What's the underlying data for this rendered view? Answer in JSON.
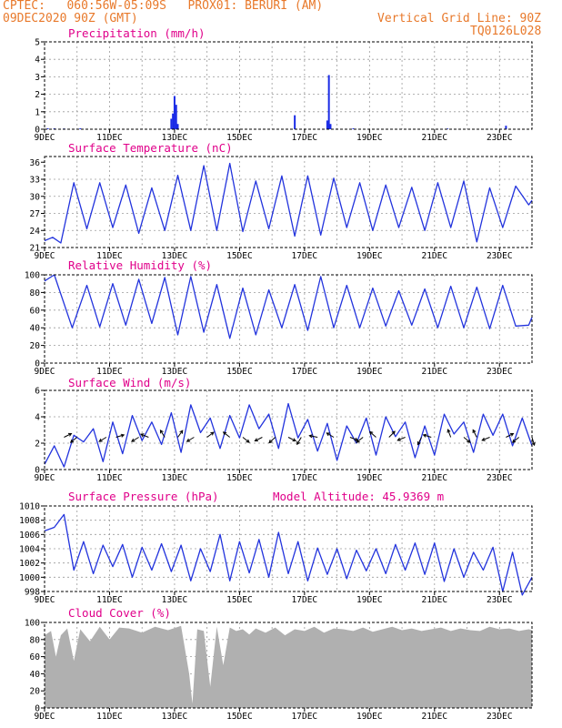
{
  "header": {
    "line1_left": "CPTEC:   060:56W-05:09S   PROX01: BERURI (AM)",
    "line2_left": "09DEC2020 90Z (GMT)",
    "line2_right": "Vertical Grid Line: 90Z",
    "line3_right": "TQ0126L028"
  },
  "colors": {
    "header_text": "#e8792b",
    "panel_title": "#e0008a",
    "series_line": "#2233dd",
    "precip_bar": "#1a2be6",
    "cloud_fill": "#b0b0b0",
    "grid": "#9a9a9a",
    "wind_arrow": "#000000"
  },
  "chart_data": [
    {
      "id": "precip",
      "type": "bar",
      "title": "Precipitation (mm/h)",
      "ylim": [
        0,
        5
      ],
      "yticks": [
        "0",
        "1",
        "2",
        "3",
        "4",
        "5"
      ],
      "xlim": [
        0,
        15
      ],
      "xticks": [
        "9DEC",
        "11DEC",
        "13DEC",
        "15DEC",
        "17DEC",
        "19DEC",
        "21DEC",
        "23DEC"
      ],
      "grid": true,
      "x": [
        0.1,
        0.3,
        0.6,
        1.1,
        3.9,
        3.95,
        4.0,
        4.05,
        4.1,
        7.7,
        8.7,
        8.75,
        8.8,
        9.5,
        12.4,
        14.2
      ],
      "values": [
        0.05,
        0.05,
        0.04,
        0.05,
        0.6,
        0.9,
        1.9,
        1.4,
        0.3,
        0.8,
        0.5,
        3.1,
        0.3,
        0.05,
        0.04,
        0.2
      ]
    },
    {
      "id": "temperature",
      "type": "line",
      "title": "Surface Temperature (nC)",
      "ylim": [
        21,
        37
      ],
      "yticks": [
        "21",
        "24",
        "27",
        "30",
        "33",
        "36"
      ],
      "xlim": [
        0,
        15
      ],
      "xticks": [
        "9DEC",
        "11DEC",
        "13DEC",
        "15DEC",
        "17DEC",
        "19DEC",
        "21DEC",
        "23DEC"
      ],
      "grid": true,
      "x": [
        0,
        0.25,
        0.5,
        0.9,
        1.3,
        1.7,
        2.1,
        2.5,
        2.9,
        3.3,
        3.7,
        4.1,
        4.5,
        4.9,
        5.3,
        5.7,
        6.1,
        6.5,
        6.9,
        7.3,
        7.7,
        8.1,
        8.5,
        8.9,
        9.3,
        9.7,
        10.1,
        10.5,
        10.9,
        11.3,
        11.7,
        12.1,
        12.5,
        12.9,
        13.3,
        13.7,
        14.1,
        14.5,
        14.9,
        15
      ],
      "values": [
        22.2,
        22.8,
        21.8,
        32.4,
        24.3,
        32.4,
        24.5,
        32,
        23.5,
        31.5,
        24,
        33.7,
        24,
        35.4,
        24,
        35.8,
        23.8,
        32.7,
        24.3,
        33.6,
        23,
        33.6,
        23.2,
        33.2,
        24.5,
        32.4,
        24,
        32,
        24.5,
        31.6,
        24,
        32.4,
        24.5,
        32.7,
        22,
        31.5,
        24.5,
        31.8,
        28.5,
        29.3
      ]
    },
    {
      "id": "humidity",
      "type": "line",
      "title": "Relative Humidity (%)",
      "ylim": [
        0,
        100
      ],
      "yticks": [
        "0",
        "20",
        "40",
        "60",
        "80",
        "100"
      ],
      "xlim": [
        0,
        15
      ],
      "xticks": [
        "9DEC",
        "11DEC",
        "13DEC",
        "15DEC",
        "17DEC",
        "19DEC",
        "21DEC",
        "23DEC"
      ],
      "grid": true,
      "x": [
        0,
        0.3,
        0.85,
        1.3,
        1.7,
        2.1,
        2.5,
        2.9,
        3.3,
        3.7,
        4.1,
        4.5,
        4.9,
        5.3,
        5.7,
        6.1,
        6.5,
        6.9,
        7.3,
        7.7,
        8.1,
        8.5,
        8.9,
        9.3,
        9.7,
        10.1,
        10.5,
        10.9,
        11.3,
        11.7,
        12.1,
        12.5,
        12.9,
        13.3,
        13.7,
        14.1,
        14.5,
        14.9,
        15
      ],
      "values": [
        93,
        100,
        40,
        88,
        41,
        90,
        43,
        95,
        45,
        97,
        32,
        98,
        35,
        89,
        28,
        85,
        32,
        83,
        40,
        89,
        37,
        98,
        40,
        88,
        40,
        85,
        42,
        82,
        43,
        84,
        40,
        87,
        40,
        86,
        39,
        88,
        42,
        43,
        52
      ]
    },
    {
      "id": "wind",
      "type": "line",
      "title": "Surface Wind (m/s)",
      "ylim": [
        0,
        6
      ],
      "yticks": [
        "0",
        "2",
        "4",
        "6"
      ],
      "xlim": [
        0,
        15
      ],
      "xticks": [
        "9DEC",
        "11DEC",
        "13DEC",
        "15DEC",
        "17DEC",
        "19DEC",
        "21DEC",
        "23DEC"
      ],
      "grid": true,
      "x": [
        0,
        0.3,
        0.6,
        0.9,
        1.2,
        1.5,
        1.8,
        2.1,
        2.4,
        2.7,
        3.0,
        3.3,
        3.6,
        3.9,
        4.2,
        4.5,
        4.8,
        5.1,
        5.4,
        5.7,
        6.0,
        6.3,
        6.6,
        6.9,
        7.2,
        7.5,
        7.8,
        8.1,
        8.4,
        8.7,
        9.0,
        9.3,
        9.6,
        9.9,
        10.2,
        10.5,
        10.8,
        11.1,
        11.4,
        11.7,
        12.0,
        12.3,
        12.6,
        12.9,
        13.2,
        13.5,
        13.8,
        14.1,
        14.4,
        14.7,
        15
      ],
      "values": [
        0.4,
        1.8,
        0.2,
        2.6,
        2.1,
        3.1,
        0.6,
        3.6,
        1.2,
        4.1,
        2.2,
        3.6,
        1.9,
        4.3,
        1.3,
        4.9,
        2.8,
        3.9,
        1.6,
        4.1,
        2.4,
        4.9,
        3.1,
        4.2,
        1.6,
        5.0,
        2.4,
        3.8,
        1.4,
        3.5,
        0.7,
        3.3,
        2.0,
        3.9,
        1.1,
        4.0,
        2.5,
        3.6,
        0.9,
        3.3,
        1.1,
        4.2,
        2.7,
        3.6,
        1.3,
        4.2,
        2.6,
        4.2,
        1.8,
        3.9,
        1.8
      ],
      "arrows_x": [
        0.6,
        1.0,
        1.9,
        2.2,
        2.9,
        3.2,
        3.7,
        4.1,
        4.6,
        5.0,
        5.7,
        6.1,
        6.7,
        7.1,
        7.5,
        7.9,
        8.4,
        8.9,
        9.4,
        9.8,
        10.2,
        10.6,
        11.1,
        11.6,
        11.9,
        12.5,
        12.9,
        13.3,
        13.7,
        14.2,
        14.6,
        15.0
      ],
      "arrows_u": [
        1,
        -1,
        -1,
        1,
        -1,
        -1,
        -0.5,
        0.5,
        -1,
        0.4,
        -1,
        1,
        -1,
        -1,
        1,
        -0.6,
        -1,
        -1,
        1,
        -1,
        -1,
        0.6,
        -1,
        -0.5,
        -1,
        -0.3,
        1,
        -0.5,
        -1,
        1,
        -1,
        0.3
      ],
      "arrows_v": [
        0.5,
        -0.8,
        -0.6,
        0.3,
        -0.6,
        0.4,
        0.8,
        0.7,
        -0.6,
        0.3,
        0.8,
        -0.8,
        -0.5,
        -0.9,
        -0.5,
        -1,
        0.2,
        0.6,
        -0.4,
        -0.8,
        0.9,
        0.6,
        -0.4,
        -1,
        0.3,
        0.8,
        -0.8,
        1,
        -0.4,
        0.5,
        -0.8,
        -1
      ]
    },
    {
      "id": "pressure",
      "type": "line",
      "title": "Surface Pressure (hPa)",
      "annotation": "Model Altitude: 45.9369 m",
      "ylim": [
        998,
        1010
      ],
      "yticks": [
        "998",
        "1000",
        "1002",
        "1004",
        "1006",
        "1008",
        "1010"
      ],
      "xlim": [
        0,
        15
      ],
      "xticks": [
        "9DEC",
        "11DEC",
        "13DEC",
        "15DEC",
        "17DEC",
        "19DEC",
        "21DEC",
        "23DEC"
      ],
      "grid": true,
      "x": [
        0,
        0.3,
        0.6,
        0.9,
        1.2,
        1.5,
        1.8,
        2.1,
        2.4,
        2.7,
        3.0,
        3.3,
        3.6,
        3.9,
        4.2,
        4.5,
        4.8,
        5.1,
        5.4,
        5.7,
        6.0,
        6.3,
        6.6,
        6.9,
        7.2,
        7.5,
        7.8,
        8.1,
        8.4,
        8.7,
        9.0,
        9.3,
        9.6,
        9.9,
        10.2,
        10.5,
        10.8,
        11.1,
        11.4,
        11.7,
        12.0,
        12.3,
        12.6,
        12.9,
        13.2,
        13.5,
        13.8,
        14.1,
        14.4,
        14.7,
        15
      ],
      "values": [
        1006.5,
        1007,
        1008.8,
        1001,
        1005,
        1000.5,
        1004.5,
        1001.5,
        1004.6,
        1000,
        1004.2,
        1001,
        1004.7,
        1000.8,
        1004.5,
        999.5,
        1004,
        1000.8,
        1006,
        999.5,
        1005,
        1000.6,
        1005.3,
        1000,
        1006.3,
        1000.5,
        1005,
        999.5,
        1004.1,
        1000.4,
        1004,
        999.8,
        1003.8,
        1000.9,
        1004,
        1000.5,
        1004.6,
        1001,
        1004.8,
        1000.4,
        1004.8,
        999.4,
        1004,
        1000,
        1003.5,
        1001,
        1004.2,
        998,
        1003.5,
        997.5,
        1000
      ]
    },
    {
      "id": "cloud",
      "type": "area",
      "title": "Cloud Cover (%)",
      "ylim": [
        0,
        100
      ],
      "yticks": [
        "0",
        "20",
        "40",
        "60",
        "80",
        "100"
      ],
      "xlim": [
        0,
        15
      ],
      "xticks": [
        "9DEC",
        "11DEC",
        "13DEC",
        "15DEC",
        "17DEC",
        "19DEC",
        "21DEC",
        "23DEC"
      ],
      "grid": true,
      "x": [
        0,
        0.2,
        0.35,
        0.5,
        0.7,
        0.9,
        1.1,
        1.4,
        1.7,
        2.0,
        2.3,
        2.6,
        3.0,
        3.4,
        3.8,
        4.2,
        4.45,
        4.55,
        4.7,
        4.9,
        5.1,
        5.3,
        5.5,
        5.7,
        5.9,
        6.1,
        6.3,
        6.5,
        6.8,
        7.1,
        7.4,
        7.7,
        8.0,
        8.3,
        8.6,
        8.9,
        9.2,
        9.5,
        9.8,
        10.1,
        10.4,
        10.7,
        11.0,
        11.3,
        11.6,
        11.9,
        12.2,
        12.5,
        12.8,
        13.1,
        13.4,
        13.7,
        14.0,
        14.3,
        14.6,
        14.9,
        15
      ],
      "values": [
        85,
        90,
        60,
        85,
        93,
        55,
        92,
        78,
        95,
        80,
        94,
        93,
        88,
        95,
        91,
        96,
        40,
        5,
        92,
        90,
        25,
        95,
        50,
        94,
        90,
        92,
        86,
        93,
        88,
        94,
        85,
        92,
        90,
        95,
        88,
        93,
        92,
        90,
        94,
        89,
        92,
        95,
        91,
        93,
        90,
        92,
        94,
        90,
        93,
        91,
        90,
        95,
        92,
        93,
        90,
        92,
        91
      ]
    }
  ]
}
